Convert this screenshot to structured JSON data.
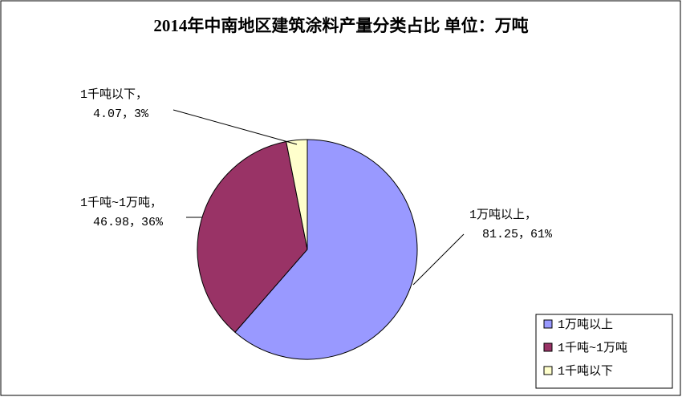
{
  "chart_data": {
    "type": "pie",
    "title": "2014年中南地区建筑涂料产量分类占比 单位：万吨",
    "categories": [
      "1万吨以上",
      "1千吨~1万吨",
      "1千吨以下"
    ],
    "label_names": [
      "1万吨以上，",
      "1千吨~1万吨，",
      "1千吨以下，"
    ],
    "values": [
      81.25,
      46.98,
      4.07
    ],
    "value_labels": [
      "81.25，61%",
      "46.98，36%",
      "4.07，3%"
    ],
    "colors": [
      "#9999ff",
      "#993366",
      "#ffffcc"
    ],
    "legend": "bottom-right"
  }
}
